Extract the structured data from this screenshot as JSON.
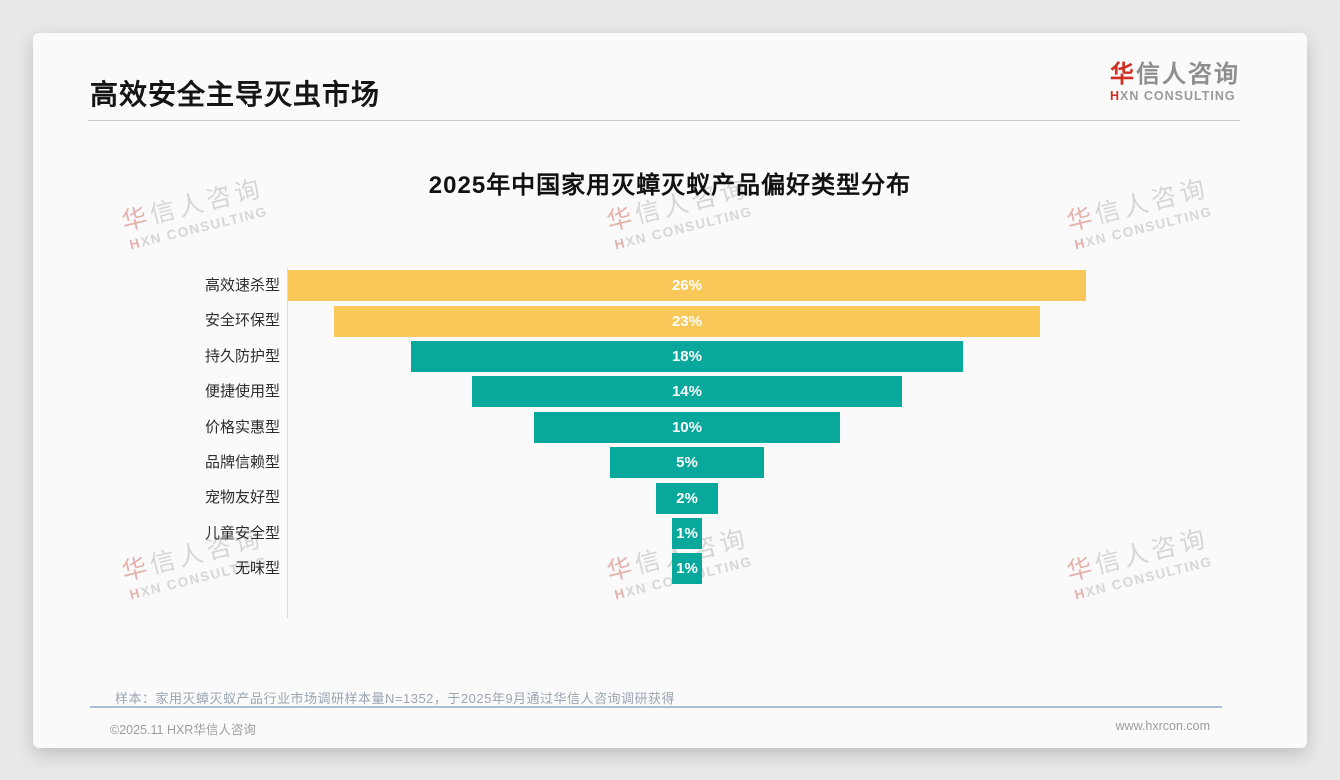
{
  "header": {
    "title": "高效安全主导灭虫市场",
    "logo": {
      "zh_accent": "华",
      "zh_rest": "信人咨询",
      "en_accent": "H",
      "en_rest": "XN CONSULTING"
    }
  },
  "chart_data": {
    "type": "bar",
    "subtype": "horizontal-centered-funnel",
    "title": "2025年中国家用灭蟑灭蚁产品偏好类型分布",
    "categories": [
      "高效速杀型",
      "安全环保型",
      "持久防护型",
      "便捷使用型",
      "价格实惠型",
      "品牌信赖型",
      "宠物友好型",
      "儿童安全型",
      "无味型"
    ],
    "values": [
      26,
      23,
      18,
      14,
      10,
      5,
      2,
      1,
      1
    ],
    "value_labels": [
      "26%",
      "23%",
      "18%",
      "14%",
      "10%",
      "5%",
      "2%",
      "1%",
      "1%"
    ],
    "unit": "%",
    "xlim": [
      0,
      26
    ],
    "highlight_count": 2,
    "colors": {
      "highlight": "#fac858",
      "default": "#09a89d"
    },
    "value_label_color": "#ffffff",
    "axis_line": true,
    "grid": false,
    "legend": false
  },
  "footnote": "样本：家用灭蟑灭蚁产品行业市场调研样本量N=1352，于2025年9月通过华信人咨询调研获得",
  "footer": {
    "left": "©2025.11 HXR华信人咨询",
    "right": "www.hxrcon.com"
  },
  "watermark": {
    "zh_accent": "华",
    "zh_rest": "信人咨询",
    "en_accent": "H",
    "en_rest": "XN CONSULTING"
  }
}
